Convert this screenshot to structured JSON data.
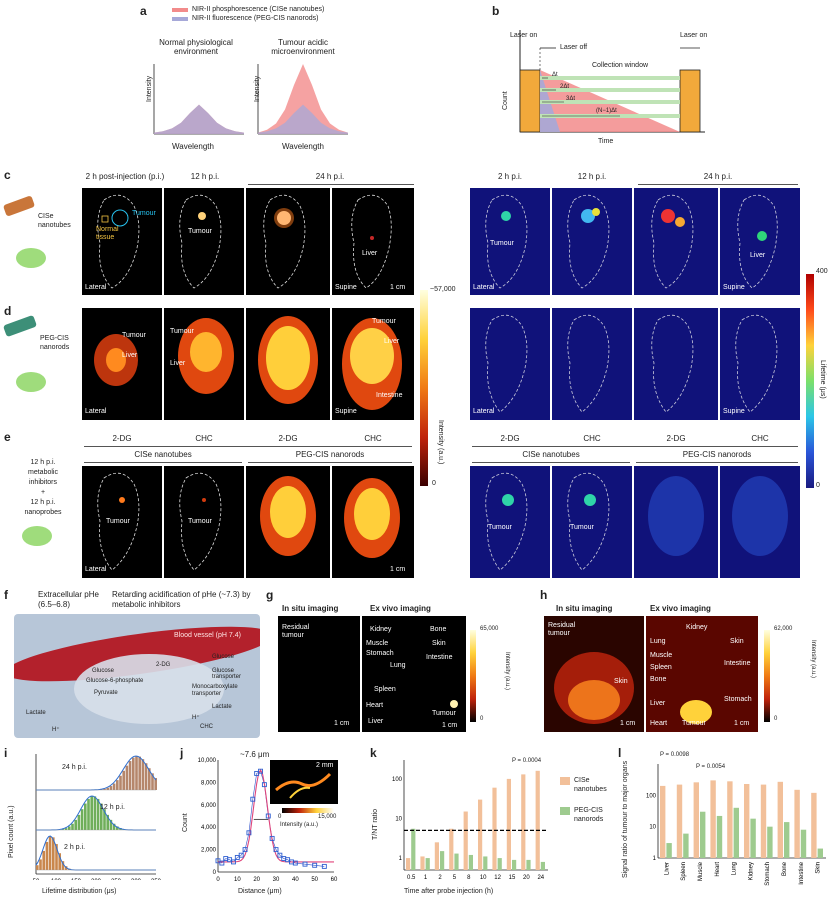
{
  "panels": {
    "a": "a",
    "b": "b",
    "c": "c",
    "d": "d",
    "e": "e",
    "f": "f",
    "g": "g",
    "h": "h",
    "i": "i",
    "j": "j",
    "k": "k",
    "l": "l"
  },
  "legend_a": {
    "red": "NIR-II phosphorescence (CISe nanotubes)",
    "blue": "NIR-II fluorescence (PEG-CIS nanorods)",
    "left_title": "Normal physiological environment",
    "right_title": "Tumour acidic microenvironment",
    "ylabel": "Intensity",
    "xlabel": "Wavelength"
  },
  "panel_b": {
    "laser_on": "Laser on",
    "laser_off": "Laser off",
    "laser_on2": "Laser on",
    "window": "Collection window",
    "dt1": "Δt",
    "dt2": "2Δt",
    "dt3": "3Δt",
    "dtn": "(N−1)Δt",
    "ylabel": "Count",
    "xlabel": "Time"
  },
  "row_c": {
    "times_left": [
      "2 h post-injection (p.i.)",
      "12 h p.i.",
      "24 h p.i."
    ],
    "times_right": [
      "2 h p.i.",
      "12 h p.i.",
      "24 h p.i."
    ],
    "probe": "CISe nanotubes",
    "tumour": "Tumour",
    "normal": "Normal tissue",
    "liver": "Liver",
    "lateral": "Lateral",
    "supine": "Supine",
    "scale": "1 cm"
  },
  "row_d": {
    "probe": "PEG-CIS nanorods",
    "tumour": "Tumour",
    "liver": "Liver",
    "intestine": "Intestine",
    "lateral": "Lateral",
    "supine": "Supine"
  },
  "row_e": {
    "side": [
      "12 h p.i.",
      "metabolic",
      "inhibitors",
      "+",
      "12 h p.i.",
      "nanoprobes"
    ],
    "treat": [
      "2-DG",
      "CHC",
      "2-DG",
      "CHC"
    ],
    "group1": "CISe nanotubes",
    "group2": "PEG-CIS nanorods",
    "tumour": "Tumour",
    "lateral": "Lateral",
    "scale": "1 cm"
  },
  "colorbar_intensity": {
    "max": "~57,000",
    "min": "0",
    "label": "Intensity (a.u.)"
  },
  "colorbar_lifetime": {
    "max": "400",
    "min": "0",
    "label": "Lifetime (μs)"
  },
  "panel_f": {
    "left_title": "Extracellular pHe (6.5–6.8)",
    "right_title": "Retarding acidification of pHe (~7.3) by metabolic inhibitors",
    "vessel": "Blood vessel (pH 7.4)",
    "labels": [
      "Glucose",
      "Glucose-6-phosphate",
      "Pyruvate",
      "Lactate",
      "2-DG",
      "Glucose",
      "Glucose transporter",
      "Monocarboxylate transporter",
      "Lactate",
      "CHC",
      "H⁺",
      "H⁺"
    ]
  },
  "panel_g": {
    "insitu": "In situ imaging",
    "exvivo": "Ex vivo imaging",
    "residual": "Residual tumour",
    "organs": [
      "Kidney",
      "Bone",
      "Muscle",
      "Skin",
      "Stomach",
      "Intestine",
      "Lung",
      "Spleen",
      "Heart",
      "Liver",
      "Tumour"
    ],
    "cbar_max": "65,000",
    "cbar_min": "0",
    "cbar_label": "Intensity (a.u.)",
    "scale": "1 cm"
  },
  "panel_h": {
    "insitu": "In situ imaging",
    "exvivo": "Ex vivo imaging",
    "residual": "Residual tumour",
    "skin_left": "Skin",
    "organs": [
      "Kidney",
      "Lung",
      "Skin",
      "Muscle",
      "Spleen",
      "Intestine",
      "Bone",
      "Liver",
      "Stomach",
      "Heart",
      "Tumour"
    ],
    "cbar_max": "62,000",
    "cbar_min": "0",
    "cbar_label": "Intensity (a.u.)",
    "scale": "1 cm"
  },
  "panel_i": {
    "ylabel": "Pixel count (a.u.)",
    "xlabel": "Lifetime distribution (μs)",
    "series": [
      "24 h p.i.",
      "12 h p.i.",
      "2 h p.i."
    ],
    "xticks": [
      "50",
      "100",
      "150",
      "200",
      "250",
      "300",
      "350"
    ]
  },
  "panel_j": {
    "annot": "~7.6 μm",
    "ylabel": "Count",
    "xlabel": "Distance (μm)",
    "inset_scale": "2 mm",
    "inset_cbar_min": "0",
    "inset_cbar_max": "15,000",
    "inset_label": "Intensity (a.u.)"
  },
  "panel_k": {
    "ylabel": "T/NT ratio",
    "xlabel": "Time after probe injection (h)",
    "pval": "P = 0.0004",
    "legend": [
      "CISe nanotubes",
      "PEG-CIS nanorods"
    ]
  },
  "panel_l": {
    "ylabel": "Signal ratio of tumour to major organs",
    "p1": "P = 0.0098",
    "p2": "P = 0.0054"
  },
  "chart_data": [
    {
      "type": "line",
      "id": "a-left",
      "title": "Normal physiological environment",
      "xlabel": "Wavelength",
      "ylabel": "Intensity",
      "x": [
        0,
        1,
        2,
        3,
        4,
        5,
        6,
        7,
        8,
        9,
        10
      ],
      "series": [
        {
          "name": "NIR-II phosphorescence (CISe nanotubes)",
          "color": "#f28b8b",
          "values": [
            0.02,
            0.04,
            0.08,
            0.16,
            0.3,
            0.42,
            0.3,
            0.16,
            0.08,
            0.04,
            0.02
          ]
        },
        {
          "name": "NIR-II fluorescence (PEG-CIS nanorods)",
          "color": "#a6a8d8",
          "values": [
            0.02,
            0.04,
            0.08,
            0.16,
            0.3,
            0.42,
            0.3,
            0.16,
            0.08,
            0.04,
            0.02
          ]
        }
      ]
    },
    {
      "type": "line",
      "id": "a-right",
      "title": "Tumour acidic microenvironment",
      "xlabel": "Wavelength",
      "ylabel": "Intensity",
      "x": [
        0,
        1,
        2,
        3,
        4,
        5,
        6,
        7,
        8,
        9,
        10
      ],
      "series": [
        {
          "name": "NIR-II phosphorescence (CISe nanotubes)",
          "color": "#f28b8b",
          "values": [
            0.02,
            0.06,
            0.15,
            0.35,
            0.7,
            1.0,
            0.7,
            0.35,
            0.15,
            0.06,
            0.02
          ]
        },
        {
          "name": "NIR-II fluorescence (PEG-CIS nanorods)",
          "color": "#a6a8d8",
          "values": [
            0.02,
            0.04,
            0.08,
            0.16,
            0.3,
            0.42,
            0.3,
            0.16,
            0.08,
            0.04,
            0.02
          ]
        }
      ]
    },
    {
      "type": "bar",
      "id": "i",
      "xlabel": "Lifetime distribution (μs)",
      "ylabel": "Pixel count (a.u.)",
      "xlim": [
        50,
        350
      ],
      "series": [
        {
          "name": "24 h p.i.",
          "center": 300,
          "width": 45,
          "color": "#b5866b"
        },
        {
          "name": "12 h p.i.",
          "center": 190,
          "width": 40,
          "color": "#6fae5a"
        },
        {
          "name": "2 h p.i.",
          "center": 85,
          "width": 25,
          "color": "#c9874c"
        }
      ]
    },
    {
      "type": "scatter",
      "id": "j",
      "xlabel": "Distance (μm)",
      "ylabel": "Count",
      "xlim": [
        0,
        60
      ],
      "ylim": [
        0,
        10000
      ],
      "x": [
        0,
        2,
        4,
        6,
        8,
        10,
        12,
        14,
        16,
        18,
        20,
        22,
        24,
        26,
        28,
        30,
        32,
        34,
        36,
        38,
        40,
        45,
        50,
        55
      ],
      "values": [
        1000,
        800,
        1200,
        1100,
        900,
        1300,
        1500,
        2000,
        3500,
        6500,
        8800,
        9000,
        7800,
        5000,
        3000,
        2000,
        1500,
        1200,
        1100,
        900,
        800,
        700,
        600,
        500
      ]
    },
    {
      "type": "bar",
      "id": "k",
      "xlabel": "Time after probe injection (h)",
      "ylabel": "T/NT ratio",
      "scale": "log",
      "ylim": [
        0.5,
        300
      ],
      "categories": [
        "0.5",
        "1",
        "2",
        "5",
        "8",
        "10",
        "12",
        "15",
        "20",
        "24"
      ],
      "series": [
        {
          "name": "CISe nanotubes",
          "color": "#f2c09a",
          "values": [
            1.0,
            1.1,
            2.5,
            5.5,
            15,
            30,
            60,
            100,
            130,
            160
          ]
        },
        {
          "name": "PEG-CIS nanorods",
          "color": "#9ecb8f",
          "values": [
            5.5,
            1.0,
            1.5,
            1.3,
            1.2,
            1.1,
            1.0,
            0.9,
            0.9,
            0.8
          ]
        }
      ],
      "threshold": 5
    },
    {
      "type": "bar",
      "id": "l",
      "ylabel": "Signal ratio of tumour to major organs",
      "scale": "log",
      "ylim": [
        1,
        1000
      ],
      "categories": [
        "Liver",
        "Spleen",
        "Muscle",
        "Heart",
        "Lung",
        "Kidney",
        "Stomach",
        "Bone",
        "Intestine",
        "Skin"
      ],
      "series": [
        {
          "name": "CISe nanotubes",
          "color": "#f2c09a",
          "values": [
            200,
            220,
            260,
            300,
            280,
            230,
            220,
            270,
            150,
            120
          ]
        },
        {
          "name": "PEG-CIS nanorods",
          "color": "#9ecb8f",
          "values": [
            3,
            6,
            30,
            22,
            40,
            18,
            10,
            14,
            8,
            2
          ]
        }
      ]
    }
  ]
}
